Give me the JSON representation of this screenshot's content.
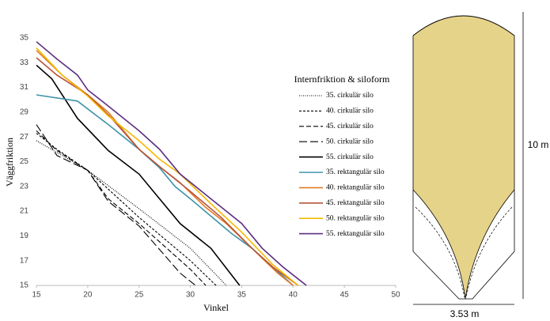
{
  "chart_data": {
    "type": "line",
    "x_label": "Vinkel",
    "y_label": "Väggfriktion",
    "legend_title": "Internfriktion & siloform",
    "legend_position": "right",
    "xlim": [
      15,
      50
    ],
    "xticks": [
      15,
      20,
      25,
      30,
      35,
      40,
      45,
      50
    ],
    "ylim": [
      15,
      35
    ],
    "yticks": [
      15,
      17,
      19,
      21,
      23,
      25,
      27,
      29,
      31,
      33,
      35
    ],
    "grid": false,
    "series": [
      {
        "name": "35. cirkulär silo",
        "color": "#000000",
        "dash": "dotted",
        "x": [
          15,
          20,
          25,
          30,
          33.5
        ],
        "values": [
          26.7,
          24.3,
          21.2,
          18,
          15
        ]
      },
      {
        "name": "40. cirkulär silo",
        "color": "#000000",
        "dash": "short",
        "x": [
          15,
          17,
          20,
          25,
          30,
          32.5
        ],
        "values": [
          27.3,
          26,
          24.3,
          20.5,
          17,
          15
        ]
      },
      {
        "name": "45. cirkulär silo",
        "color": "#000000",
        "dash": "medium",
        "x": [
          15,
          17,
          20,
          22,
          25,
          30,
          31.5
        ],
        "values": [
          27.5,
          25.9,
          24.3,
          22,
          20,
          16.3,
          15
        ]
      },
      {
        "name": "50. cirkulär silo",
        "color": "#000000",
        "dash": "long",
        "x": [
          15,
          17,
          20,
          22,
          25,
          29,
          30.5
        ],
        "values": [
          28,
          25.5,
          24.3,
          21.8,
          19.8,
          16,
          15
        ]
      },
      {
        "name": "55. cirkulär silo",
        "color": "#000000",
        "dash": "solid",
        "x": [
          15,
          16.5,
          19,
          22,
          25,
          27,
          29,
          32,
          34.8
        ],
        "values": [
          32.8,
          31.7,
          28.5,
          25.9,
          24,
          22,
          20,
          18,
          15
        ]
      },
      {
        "name": "35. rektangulär silo",
        "color": "#3f93a8",
        "dash": "solid",
        "x": [
          15,
          19,
          22,
          25,
          27,
          28.5,
          30,
          32,
          34,
          36,
          38,
          40
        ],
        "values": [
          30.4,
          29.9,
          28,
          26,
          24.5,
          23,
          22,
          20.6,
          19.2,
          18,
          16.5,
          15
        ]
      },
      {
        "name": "40. rektangulär silo",
        "color": "#e07b24",
        "dash": "solid",
        "x": [
          15,
          17.5,
          20,
          22,
          25,
          27,
          29,
          31.5,
          33.5,
          36,
          38.5,
          40
        ],
        "values": [
          34,
          32,
          30.4,
          29,
          26,
          24.6,
          23.3,
          21.3,
          20,
          18,
          16,
          15
        ]
      },
      {
        "name": "45. rektangulär silo",
        "color": "#b5533b",
        "dash": "solid",
        "x": [
          15,
          17,
          20,
          22,
          25,
          27,
          30,
          33,
          36,
          38,
          40.5
        ],
        "values": [
          33.4,
          32,
          30.4,
          28.8,
          26,
          24.6,
          22.6,
          20.5,
          18,
          16.5,
          15
        ]
      },
      {
        "name": "50. rektangulär silo",
        "color": "#f5b800",
        "dash": "solid",
        "x": [
          15,
          17.5,
          20,
          22,
          25,
          27,
          29,
          32,
          35,
          38,
          40.5
        ],
        "values": [
          34.2,
          32,
          30.3,
          28.7,
          26.7,
          25.2,
          24,
          21.6,
          19.3,
          16.7,
          15
        ]
      },
      {
        "name": "55. rektangulär silo",
        "color": "#5b2f82",
        "dash": "solid",
        "x": [
          15,
          17,
          19,
          20,
          22,
          25,
          27,
          29,
          32,
          35,
          37,
          39,
          41.3
        ],
        "values": [
          34.7,
          33.3,
          32,
          30.8,
          29.5,
          27.5,
          26,
          24,
          22,
          20,
          18,
          16.5,
          15
        ]
      }
    ]
  },
  "diagram": {
    "height_label": "10 m",
    "width_label": "3.53 m"
  }
}
